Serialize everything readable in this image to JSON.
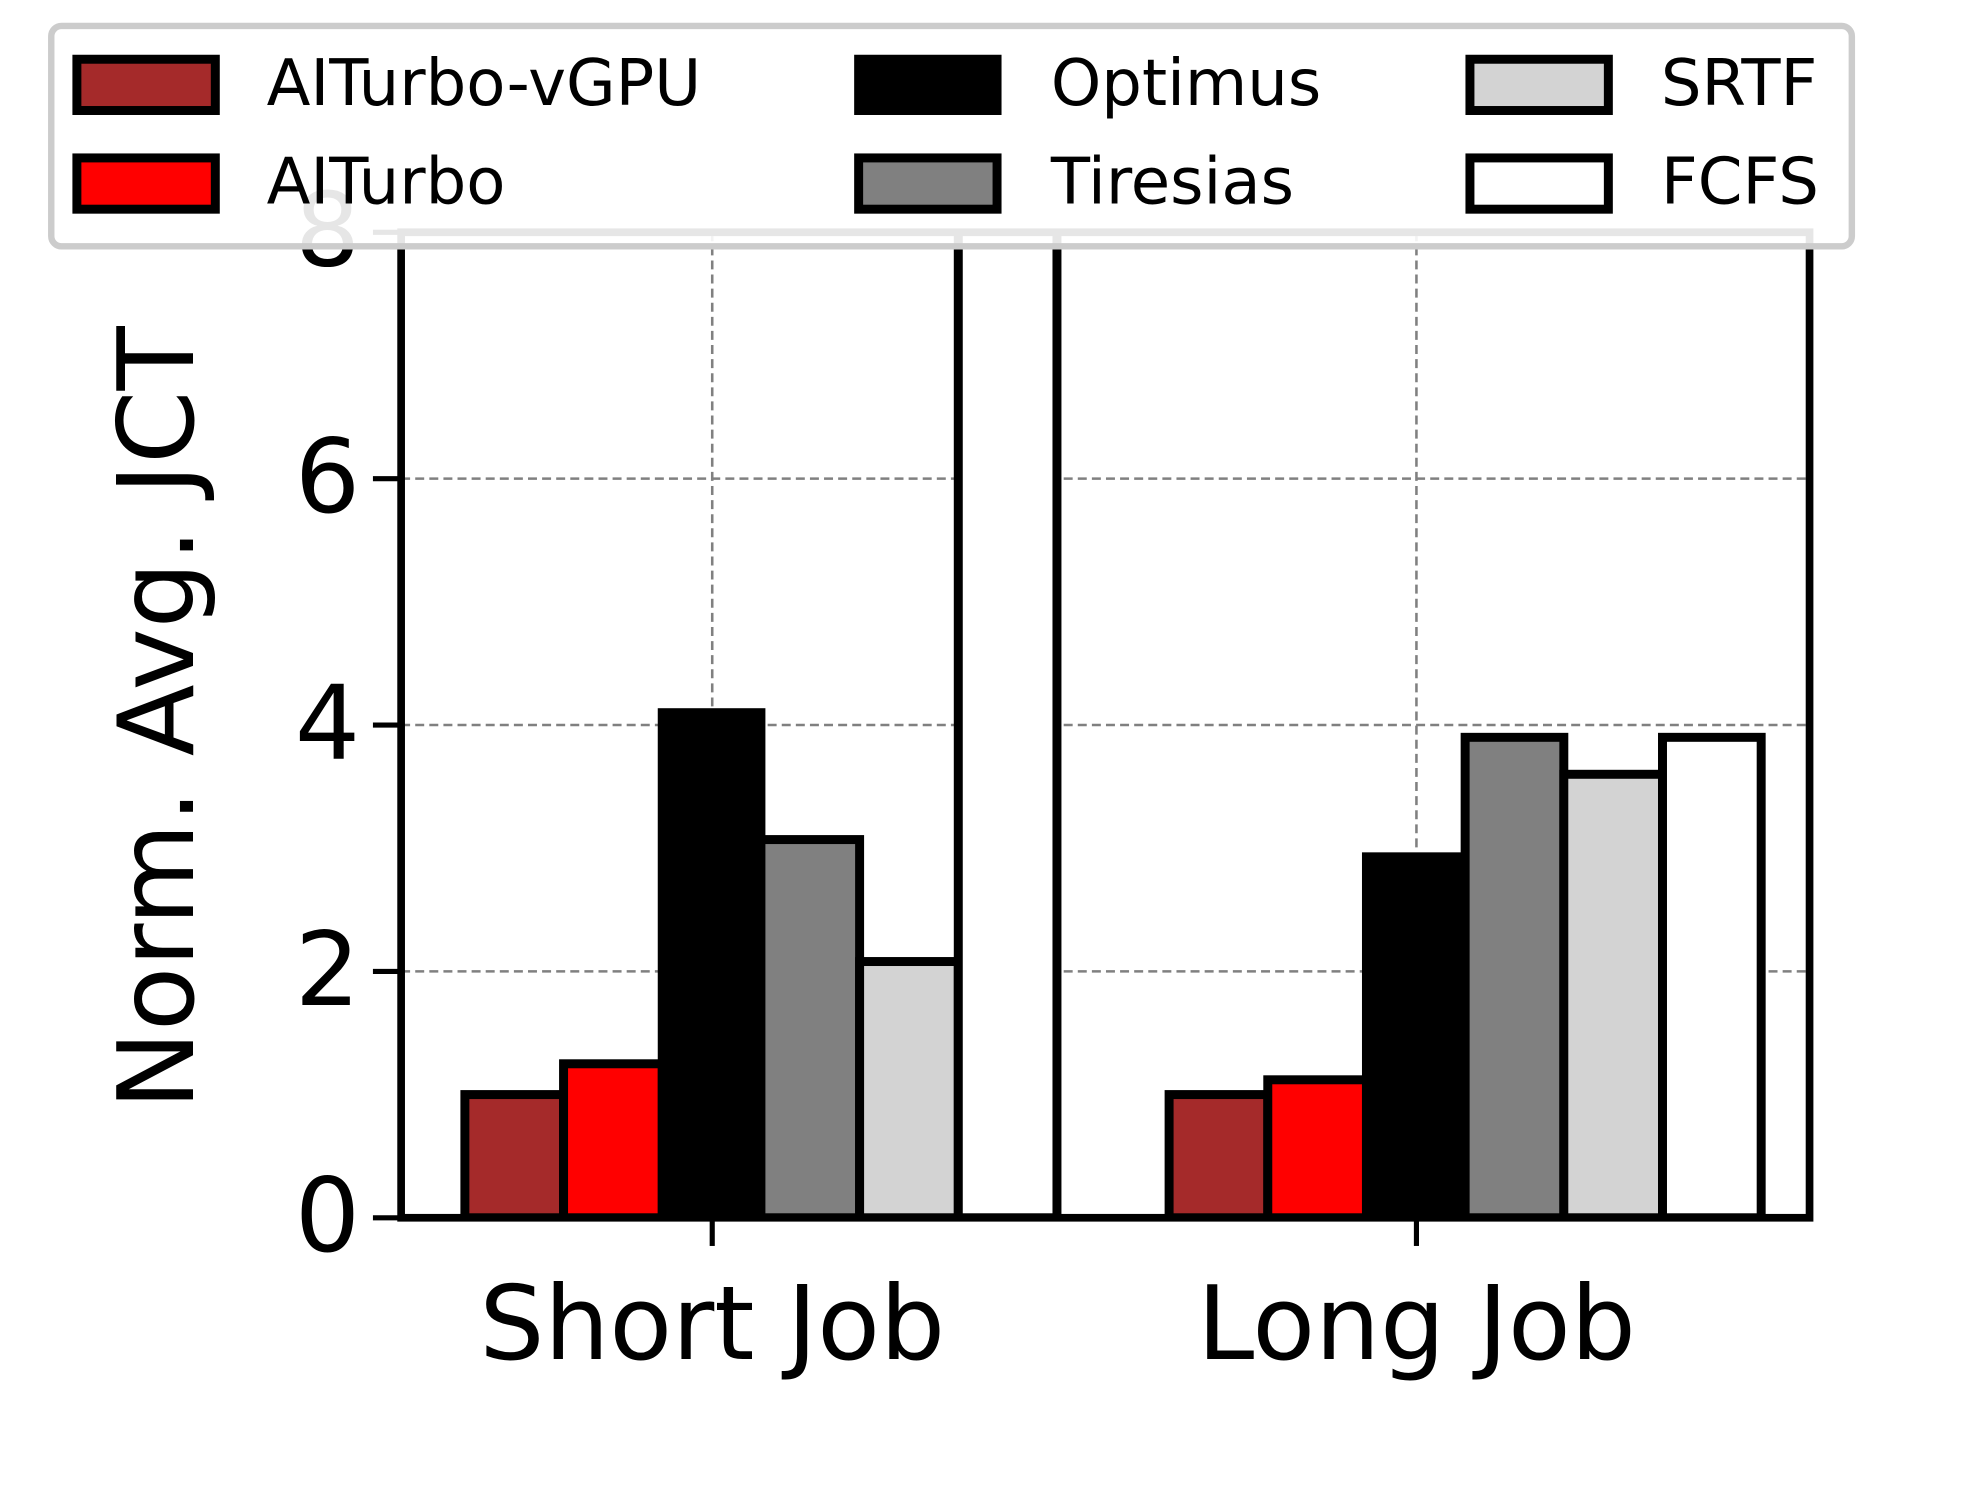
{
  "chart_data": {
    "type": "bar",
    "y_label": "Norm. Avg. JCT",
    "categories": [
      "Short Job",
      "Long Job"
    ],
    "series": [
      {
        "name": "AITurbo-vGPU",
        "color": "#a52a2a",
        "values": [
          1.0,
          1.0
        ]
      },
      {
        "name": "AITurbo",
        "color": "#ff0000",
        "values": [
          1.25,
          1.12
        ]
      },
      {
        "name": "Optimus",
        "color": "#000000",
        "values": [
          4.1,
          2.93
        ]
      },
      {
        "name": "Tiresias",
        "color": "#808080",
        "values": [
          3.07,
          3.9
        ]
      },
      {
        "name": "SRTF",
        "color": "#d3d3d3",
        "values": [
          2.08,
          3.6
        ]
      },
      {
        "name": "FCFS",
        "color": "#ffffff",
        "values": [
          9,
          3.9
        ]
      }
    ],
    "ylim": [
      0,
      8
    ],
    "yticks": [
      0,
      2,
      4,
      6,
      8
    ],
    "grid": true,
    "legend": "top"
  }
}
